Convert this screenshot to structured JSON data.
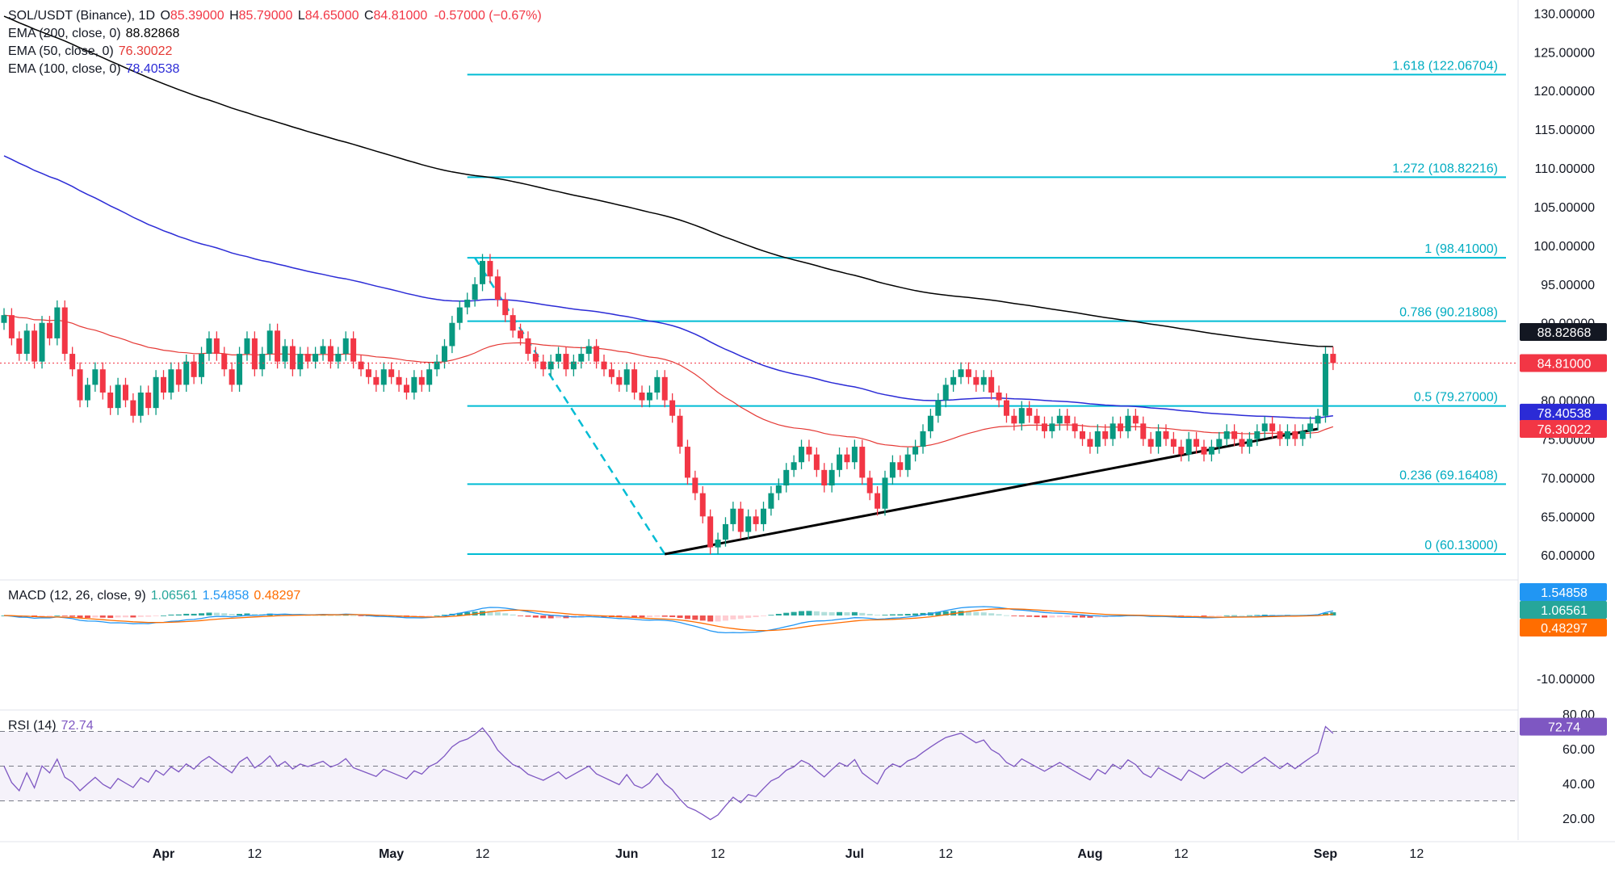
{
  "header": {
    "symbol": "SOL/USDT (Binance), 1D",
    "open_label": "O",
    "open": "85.39000",
    "high_label": "H",
    "high": "85.79000",
    "low_label": "L",
    "low": "84.65000",
    "close_label": "C",
    "close": "84.81000",
    "change": "-0.57000 (−0.67%)"
  },
  "indicators": {
    "ema200": {
      "label": "EMA (200, close, 0)",
      "value": "88.82868",
      "color": "#000000"
    },
    "ema50": {
      "label": "EMA (50, close, 0)",
      "value": "76.30022",
      "color": "#e53935"
    },
    "ema100": {
      "label": "EMA (100, close, 0)",
      "value": "78.40538",
      "color": "#2b2bd6"
    }
  },
  "macd": {
    "label": "MACD (12, 26, close, 9)",
    "hist": "1.06561",
    "macd": "1.54858",
    "signal": "0.48297",
    "colors": {
      "macd": "#2196f3",
      "signal": "#ff6d00",
      "hist_up": "#26a69a",
      "hist_up_light": "#b2dfdb",
      "hist_down": "#ef5350",
      "hist_down_light": "#ffcdd2"
    }
  },
  "rsi": {
    "label": "RSI (14)",
    "value": "72.74",
    "color": "#7e57c2",
    "ticks": [
      "80.00",
      "60.00",
      "40.00",
      "20.00"
    ]
  },
  "colors": {
    "up": "#089981",
    "down": "#f23645",
    "fib": "#00bcd4",
    "price": "#f23645"
  },
  "chart_data": [
    {
      "type": "candlestick",
      "title": "SOL/USDT (Binance), 1D",
      "x_labels": [
        "Apr",
        "12",
        "May",
        "12",
        "Jun",
        "12",
        "Jul",
        "12",
        "Aug",
        "12",
        "Sep",
        "12"
      ],
      "y_ticks": [
        "130.00000",
        "125.00000",
        "120.00000",
        "115.00000",
        "110.00000",
        "105.00000",
        "100.00000",
        "95.00000",
        "90.00000",
        "85.00000",
        "80.00000",
        "75.00000",
        "70.00000",
        "65.00000",
        "60.00000"
      ],
      "ylim": [
        57,
        131.5
      ],
      "last_price": "84.81000",
      "series": [
        {
          "name": "EMA (200, close, 0)",
          "value": "88.82868"
        },
        {
          "name": "EMA (100, close, 0)",
          "value": "78.40538"
        },
        {
          "name": "EMA (50, close, 0)",
          "value": "76.30022"
        }
      ],
      "fibonacci": [
        {
          "label": "1.618 (122.06704)",
          "value": 122.06704
        },
        {
          "label": "1.272 (108.82216)",
          "value": 108.82216
        },
        {
          "label": "1 (98.41000)",
          "value": 98.41
        },
        {
          "label": "0.786 (90.21808)",
          "value": 90.21808
        },
        {
          "label": "0.5 (79.27000)",
          "value": 79.27
        },
        {
          "label": "0.236 (69.16408)",
          "value": 69.16408
        },
        {
          "label": "0 (60.13000)",
          "value": 60.13
        }
      ],
      "trendline": [
        [
          60.13,
          "Jun 6"
        ],
        [
          76.3,
          "Aug 30"
        ]
      ]
    },
    {
      "type": "line",
      "title": "MACD (12, 26, close, 9)",
      "values": {
        "histogram": 1.06561,
        "macd": 1.54858,
        "signal": 0.48297
      },
      "y_ticks": [
        "-10.00000"
      ]
    },
    {
      "type": "line",
      "title": "RSI (14)",
      "last": 72.74,
      "levels": [
        70,
        50,
        30
      ],
      "y_ticks": [
        "80.00",
        "60.00",
        "40.00",
        "20.00"
      ]
    }
  ]
}
